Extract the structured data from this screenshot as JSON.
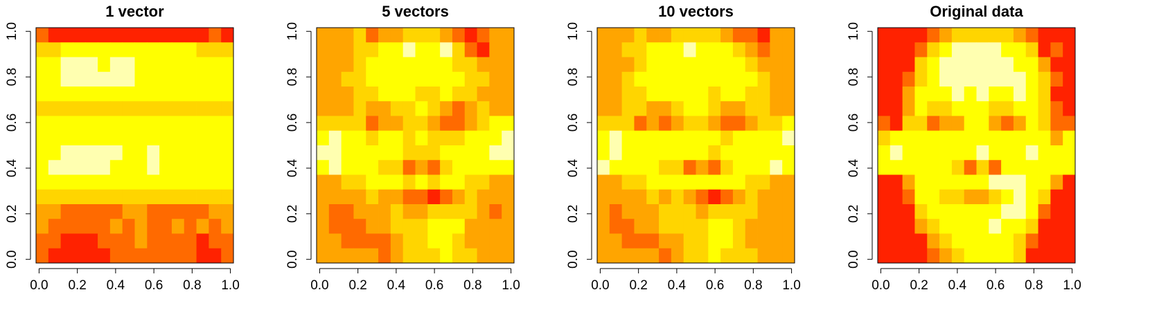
{
  "chart_data": [
    {
      "type": "heatmap",
      "title": "1 vector",
      "colors": [
        "#FF2200",
        "#FF6A00",
        "#FFA500",
        "#FFD500",
        "#FFFF00",
        "#FFFFB0"
      ],
      "xlim": [
        -0.016,
        1.016
      ],
      "ylim": [
        -0.016,
        1.016
      ],
      "xticks": [
        {
          "value": 0,
          "label": "0.0"
        },
        0.2,
        0.4,
        0.6,
        0.8,
        {
          "value": 1,
          "label": "1.0"
        }
      ],
      "yticks": [
        {
          "value": 0,
          "label": "0.0"
        },
        0.2,
        0.4,
        0.6,
        0.8,
        {
          "value": 1,
          "label": "1.0"
        }
      ],
      "z": [
        [
          1,
          0,
          0,
          0,
          0,
          0,
          0,
          0,
          0,
          0,
          0,
          0,
          0,
          0,
          1,
          0
        ],
        [
          3,
          3,
          4,
          4,
          4,
          4,
          4,
          4,
          4,
          4,
          4,
          4,
          4,
          3,
          3,
          3
        ],
        [
          4,
          4,
          5,
          5,
          5,
          4,
          5,
          5,
          4,
          4,
          4,
          4,
          4,
          4,
          4,
          4
        ],
        [
          4,
          4,
          5,
          5,
          5,
          5,
          5,
          5,
          4,
          4,
          4,
          4,
          4,
          4,
          4,
          4
        ],
        [
          4,
          4,
          4,
          4,
          4,
          4,
          4,
          4,
          4,
          4,
          4,
          4,
          4,
          4,
          4,
          4
        ],
        [
          3,
          3,
          3,
          3,
          3,
          3,
          3,
          3,
          3,
          3,
          3,
          3,
          3,
          3,
          3,
          3
        ],
        [
          4,
          4,
          4,
          4,
          4,
          4,
          4,
          4,
          4,
          4,
          4,
          4,
          4,
          4,
          4,
          4
        ],
        [
          4,
          4,
          4,
          4,
          4,
          4,
          4,
          4,
          4,
          4,
          4,
          4,
          4,
          4,
          4,
          4
        ],
        [
          4,
          4,
          5,
          5,
          5,
          5,
          5,
          4,
          4,
          5,
          4,
          4,
          4,
          4,
          4,
          4
        ],
        [
          4,
          5,
          5,
          5,
          5,
          5,
          4,
          4,
          4,
          5,
          4,
          4,
          4,
          4,
          4,
          4
        ],
        [
          4,
          4,
          4,
          4,
          4,
          4,
          4,
          4,
          4,
          4,
          4,
          4,
          4,
          4,
          4,
          4
        ],
        [
          3,
          3,
          3,
          3,
          3,
          3,
          3,
          3,
          3,
          3,
          3,
          3,
          3,
          3,
          3,
          3
        ],
        [
          2,
          2,
          1,
          1,
          1,
          1,
          1,
          2,
          2,
          1,
          1,
          1,
          1,
          1,
          2,
          2
        ],
        [
          2,
          1,
          1,
          1,
          1,
          1,
          2,
          1,
          2,
          1,
          1,
          2,
          1,
          2,
          1,
          2
        ],
        [
          1,
          1,
          0,
          0,
          0,
          1,
          1,
          1,
          2,
          1,
          1,
          1,
          1,
          0,
          1,
          1
        ],
        [
          1,
          0,
          0,
          0,
          0,
          0,
          1,
          1,
          1,
          1,
          1,
          1,
          1,
          0,
          0,
          1
        ]
      ]
    },
    {
      "type": "heatmap",
      "title": "5 vectors",
      "colors": [
        "#FF2200",
        "#FF6A00",
        "#FFA500",
        "#FFD500",
        "#FFFF00",
        "#FFFFB0"
      ],
      "xlim": [
        -0.016,
        1.016
      ],
      "ylim": [
        -0.016,
        1.016
      ],
      "xticks": [
        {
          "value": 0,
          "label": "0.0"
        },
        0.2,
        0.4,
        0.6,
        0.8,
        {
          "value": 1,
          "label": "1.0"
        }
      ],
      "yticks": [
        {
          "value": 0,
          "label": "0.0"
        },
        0.2,
        0.4,
        0.6,
        0.8,
        {
          "value": 1,
          "label": "1.0"
        }
      ],
      "z": [
        [
          2,
          2,
          2,
          3,
          1,
          2,
          2,
          3,
          3,
          3,
          2,
          1,
          0,
          1,
          2,
          2
        ],
        [
          2,
          2,
          2,
          3,
          3,
          4,
          4,
          5,
          4,
          4,
          5,
          3,
          1,
          0,
          2,
          2
        ],
        [
          2,
          2,
          2,
          3,
          4,
          4,
          4,
          4,
          4,
          4,
          4,
          3,
          3,
          2,
          2,
          2
        ],
        [
          2,
          2,
          3,
          3,
          4,
          4,
          4,
          4,
          4,
          4,
          4,
          4,
          3,
          3,
          2,
          2
        ],
        [
          2,
          2,
          2,
          3,
          3,
          4,
          4,
          4,
          3,
          3,
          4,
          3,
          3,
          2,
          2,
          2
        ],
        [
          2,
          2,
          2,
          3,
          2,
          2,
          3,
          3,
          4,
          3,
          2,
          1,
          2,
          3,
          2,
          2
        ],
        [
          3,
          3,
          3,
          3,
          1,
          2,
          2,
          3,
          3,
          2,
          1,
          1,
          2,
          3,
          4,
          4
        ],
        [
          4,
          5,
          4,
          4,
          3,
          4,
          4,
          3,
          4,
          3,
          3,
          3,
          4,
          4,
          4,
          5
        ],
        [
          5,
          5,
          4,
          4,
          4,
          4,
          4,
          3,
          3,
          3,
          4,
          4,
          4,
          4,
          5,
          5
        ],
        [
          4,
          5,
          4,
          4,
          4,
          3,
          3,
          1,
          2,
          1,
          3,
          4,
          4,
          4,
          4,
          4
        ],
        [
          2,
          2,
          3,
          3,
          4,
          4,
          4,
          3,
          4,
          3,
          4,
          4,
          3,
          3,
          2,
          2
        ],
        [
          2,
          2,
          2,
          2,
          3,
          2,
          2,
          1,
          1,
          0,
          1,
          2,
          3,
          2,
          2,
          2
        ],
        [
          2,
          1,
          1,
          2,
          2,
          2,
          3,
          2,
          2,
          3,
          3,
          3,
          3,
          2,
          1,
          2
        ],
        [
          2,
          1,
          1,
          1,
          2,
          2,
          3,
          3,
          3,
          4,
          4,
          4,
          2,
          2,
          2,
          2
        ],
        [
          2,
          2,
          1,
          1,
          1,
          1,
          2,
          3,
          3,
          4,
          4,
          3,
          2,
          2,
          2,
          2
        ],
        [
          2,
          2,
          2,
          2,
          2,
          1,
          2,
          3,
          3,
          3,
          4,
          3,
          3,
          2,
          2,
          2
        ]
      ]
    },
    {
      "type": "heatmap",
      "title": "10 vectors",
      "colors": [
        "#FF2200",
        "#FF6A00",
        "#FFA500",
        "#FFD500",
        "#FFFF00",
        "#FFFFB0"
      ],
      "xlim": [
        -0.016,
        1.016
      ],
      "ylim": [
        -0.016,
        1.016
      ],
      "xticks": [
        {
          "value": 0,
          "label": "0.0"
        },
        0.2,
        0.4,
        0.6,
        0.8,
        {
          "value": 1,
          "label": "1.0"
        }
      ],
      "yticks": [
        {
          "value": 0,
          "label": "0.0"
        },
        0.2,
        0.4,
        0.6,
        0.8,
        {
          "value": 1,
          "label": "1.0"
        }
      ],
      "z": [
        [
          2,
          2,
          2,
          3,
          2,
          2,
          3,
          3,
          3,
          3,
          2,
          1,
          1,
          0,
          2,
          2
        ],
        [
          2,
          2,
          3,
          3,
          4,
          4,
          4,
          5,
          4,
          4,
          4,
          3,
          2,
          1,
          2,
          2
        ],
        [
          2,
          2,
          2,
          3,
          4,
          4,
          4,
          4,
          4,
          4,
          4,
          4,
          3,
          2,
          2,
          2
        ],
        [
          2,
          2,
          3,
          4,
          4,
          4,
          4,
          4,
          4,
          4,
          4,
          4,
          4,
          3,
          2,
          2
        ],
        [
          2,
          2,
          3,
          3,
          4,
          4,
          4,
          4,
          4,
          3,
          4,
          4,
          3,
          3,
          2,
          2
        ],
        [
          2,
          2,
          3,
          3,
          2,
          2,
          3,
          4,
          4,
          3,
          2,
          2,
          3,
          3,
          2,
          2
        ],
        [
          3,
          3,
          3,
          1,
          2,
          1,
          2,
          3,
          3,
          2,
          1,
          1,
          2,
          3,
          3,
          4
        ],
        [
          4,
          5,
          4,
          4,
          4,
          4,
          4,
          4,
          4,
          4,
          3,
          4,
          4,
          4,
          4,
          5
        ],
        [
          4,
          5,
          4,
          4,
          4,
          4,
          4,
          4,
          4,
          3,
          4,
          4,
          4,
          4,
          4,
          4
        ],
        [
          5,
          4,
          4,
          4,
          4,
          3,
          3,
          1,
          2,
          1,
          3,
          4,
          4,
          4,
          5,
          4
        ],
        [
          2,
          2,
          3,
          3,
          4,
          4,
          4,
          4,
          4,
          4,
          4,
          4,
          3,
          3,
          2,
          2
        ],
        [
          2,
          2,
          2,
          2,
          3,
          2,
          3,
          2,
          1,
          0,
          1,
          2,
          3,
          2,
          2,
          2
        ],
        [
          2,
          1,
          2,
          2,
          2,
          3,
          3,
          3,
          2,
          3,
          3,
          3,
          3,
          2,
          2,
          2
        ],
        [
          2,
          1,
          1,
          2,
          2,
          3,
          3,
          3,
          3,
          4,
          4,
          3,
          2,
          2,
          2,
          2
        ],
        [
          2,
          2,
          1,
          1,
          1,
          2,
          2,
          3,
          3,
          4,
          4,
          3,
          2,
          2,
          2,
          2
        ],
        [
          2,
          2,
          2,
          2,
          2,
          1,
          2,
          3,
          3,
          4,
          3,
          3,
          3,
          2,
          2,
          2
        ]
      ]
    },
    {
      "type": "heatmap",
      "title": "Original data",
      "colors": [
        "#FF2200",
        "#FF6A00",
        "#FFA500",
        "#FFD500",
        "#FFFF00",
        "#FFFFB0"
      ],
      "xlim": [
        -0.016,
        1.016
      ],
      "ylim": [
        -0.016,
        1.016
      ],
      "xticks": [
        {
          "value": 0,
          "label": "0.0"
        },
        0.2,
        0.4,
        0.6,
        0.8,
        {
          "value": 1,
          "label": "1.0"
        }
      ],
      "yticks": [
        {
          "value": 0,
          "label": "0.0"
        },
        0.2,
        0.4,
        0.6,
        0.8,
        {
          "value": 1,
          "label": "1.0"
        }
      ],
      "z": [
        [
          0,
          0,
          0,
          0,
          1,
          2,
          3,
          3,
          3,
          3,
          3,
          2,
          1,
          0,
          0,
          0
        ],
        [
          0,
          0,
          0,
          1,
          3,
          4,
          5,
          5,
          5,
          5,
          4,
          4,
          3,
          0,
          1,
          0
        ],
        [
          0,
          0,
          0,
          3,
          4,
          5,
          5,
          5,
          5,
          5,
          5,
          4,
          4,
          2,
          0,
          0
        ],
        [
          0,
          0,
          1,
          3,
          4,
          5,
          5,
          5,
          5,
          5,
          5,
          5,
          4,
          3,
          1,
          0
        ],
        [
          0,
          0,
          2,
          4,
          4,
          4,
          5,
          4,
          5,
          4,
          4,
          5,
          4,
          3,
          0,
          0
        ],
        [
          0,
          0,
          2,
          4,
          3,
          3,
          4,
          4,
          4,
          3,
          3,
          4,
          4,
          3,
          1,
          0
        ],
        [
          1,
          0,
          3,
          3,
          1,
          2,
          2,
          4,
          4,
          2,
          1,
          2,
          4,
          3,
          1,
          1
        ],
        [
          3,
          4,
          4,
          4,
          4,
          4,
          4,
          4,
          4,
          4,
          4,
          4,
          4,
          4,
          2,
          4
        ],
        [
          4,
          5,
          4,
          4,
          4,
          4,
          4,
          4,
          5,
          4,
          4,
          4,
          5,
          4,
          4,
          4
        ],
        [
          4,
          4,
          4,
          4,
          4,
          4,
          3,
          1,
          3,
          1,
          4,
          4,
          4,
          4,
          4,
          4
        ],
        [
          0,
          0,
          2,
          4,
          4,
          4,
          4,
          4,
          4,
          5,
          5,
          5,
          4,
          4,
          2,
          0
        ],
        [
          0,
          0,
          1,
          4,
          4,
          3,
          3,
          2,
          2,
          3,
          4,
          5,
          4,
          3,
          0,
          0
        ],
        [
          0,
          0,
          0,
          3,
          4,
          4,
          4,
          4,
          4,
          4,
          5,
          5,
          4,
          1,
          0,
          0
        ],
        [
          0,
          0,
          0,
          2,
          3,
          4,
          4,
          4,
          4,
          5,
          4,
          4,
          3,
          0,
          0,
          0
        ],
        [
          0,
          0,
          0,
          0,
          2,
          3,
          4,
          4,
          4,
          4,
          4,
          3,
          1,
          0,
          0,
          0
        ],
        [
          0,
          0,
          0,
          0,
          1,
          2,
          3,
          4,
          4,
          4,
          4,
          3,
          0,
          0,
          0,
          0
        ]
      ]
    }
  ]
}
